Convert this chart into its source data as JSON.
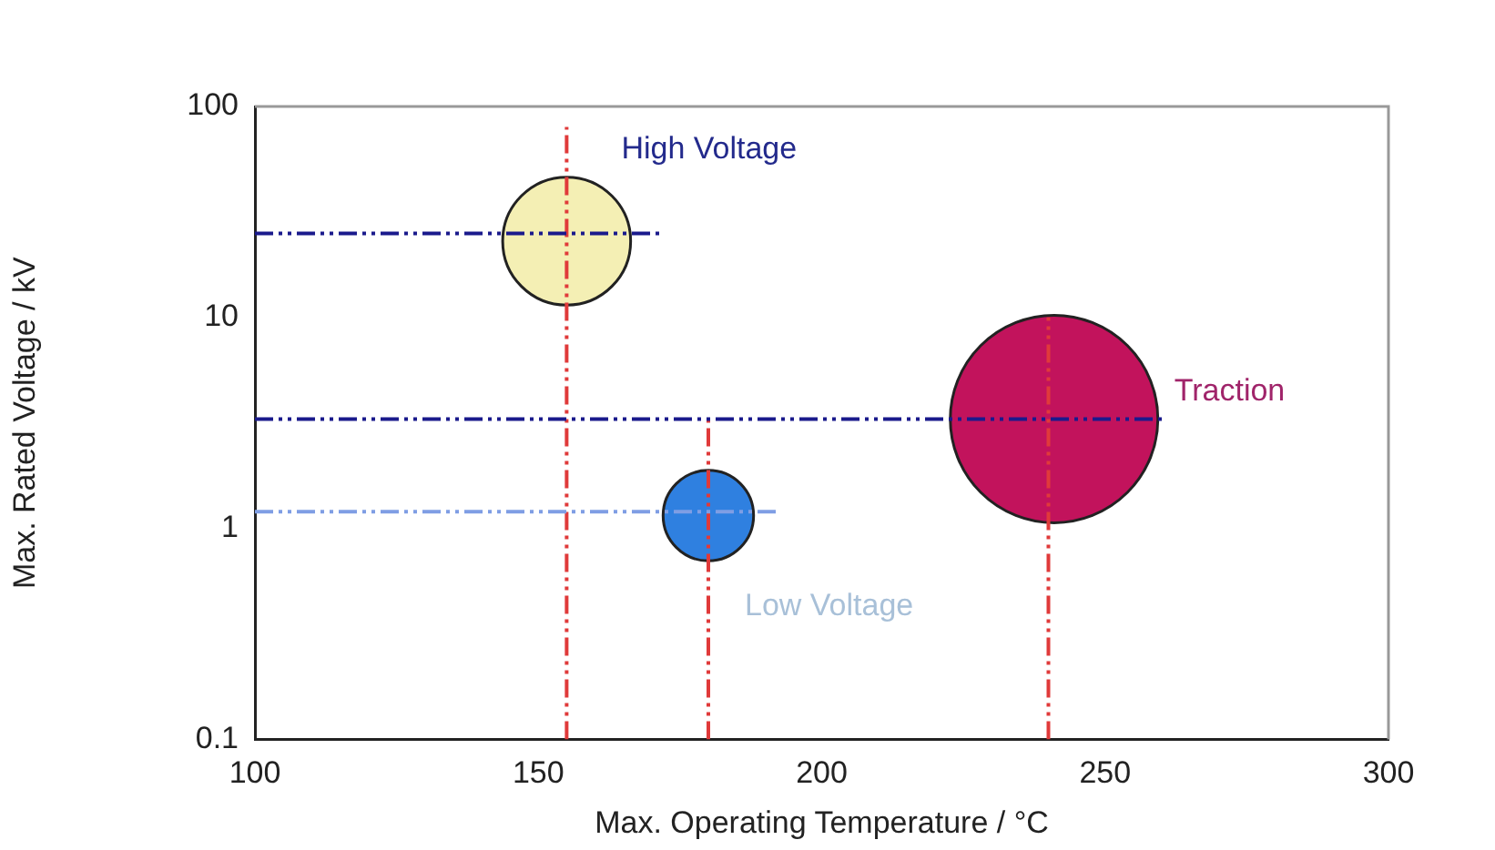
{
  "chart_data": {
    "type": "bubble",
    "xlabel": "Max. Operating Temperature / °C",
    "ylabel": "Max. Rated Voltage / kV",
    "xlim": [
      100,
      300
    ],
    "xticks": [
      100,
      150,
      200,
      250,
      300
    ],
    "ylim": [
      0.1,
      100
    ],
    "yticks": [
      0.1,
      1,
      10,
      100
    ],
    "log": "y",
    "grid": false,
    "legend": false,
    "series": [
      {
        "name": "High Voltage",
        "color": "#f4efb4",
        "x": [
          155
        ],
        "values": [
          23
        ],
        "sizes": [
          0.38
        ]
      },
      {
        "name": "Traction",
        "color": "#c2135c",
        "x": [
          241
        ],
        "values": [
          3.3
        ],
        "sizes": [
          1
        ]
      },
      {
        "name": "Low Voltage",
        "color": "#2f80e0",
        "x": [
          180
        ],
        "values": [
          1.15
        ],
        "sizes": [
          0.19
        ]
      },
      {
        "type": "line",
        "color": "#1a1a8c",
        "line_style": "dashed",
        "marker": "none",
        "x": [
          100,
          172
        ],
        "values": [
          25,
          25
        ]
      },
      {
        "type": "line",
        "color": "#1a1a8c",
        "line_style": "dashed",
        "marker": "none",
        "x": [
          100,
          260
        ],
        "values": [
          3.3,
          3.3
        ]
      },
      {
        "type": "line",
        "color": "#7f9ee4",
        "line_style": "dashed",
        "marker": "none",
        "x": [
          100,
          192
        ],
        "values": [
          1.2,
          1.2
        ]
      },
      {
        "type": "line",
        "color": "#e03a3a",
        "line_style": "dashed",
        "marker": "none",
        "x": [
          155,
          155
        ],
        "values": [
          0.1,
          80
        ]
      },
      {
        "type": "line",
        "color": "#e03a3a",
        "line_style": "dashed",
        "marker": "none",
        "x": [
          180,
          180
        ],
        "values": [
          0.1,
          3.3
        ]
      },
      {
        "type": "line",
        "color": "#e03a3a",
        "line_style": "dashed",
        "marker": "none",
        "x": [
          240,
          240
        ],
        "values": [
          0.1,
          10
        ]
      }
    ]
  }
}
